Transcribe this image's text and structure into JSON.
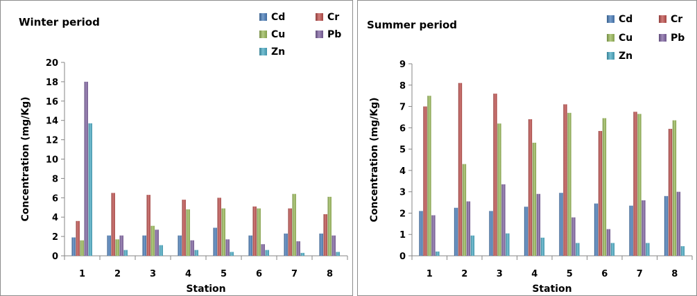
{
  "colors": {
    "Cd": "#4a7ebb",
    "Cr": "#c0504d",
    "Cu": "#9bbb59",
    "Pb": "#8064a2",
    "Zn": "#4bacc6"
  },
  "chart_data": [
    {
      "type": "bar",
      "title": "Winter period",
      "xlabel": "Station",
      "ylabel": "Concentration (mg/Kg)",
      "categories": [
        "1",
        "2",
        "3",
        "4",
        "5",
        "6",
        "7",
        "8"
      ],
      "ylim": [
        0,
        20
      ],
      "yticks": [
        "0",
        "2",
        "4",
        "6",
        "8",
        "10",
        "12",
        "14",
        "16",
        "18",
        "20"
      ],
      "legend_position": "top-right",
      "series": [
        {
          "name": "Cd",
          "values": [
            1.9,
            2.1,
            2.1,
            2.1,
            2.9,
            2.1,
            2.3,
            2.3
          ]
        },
        {
          "name": "Cr",
          "values": [
            3.6,
            6.5,
            6.3,
            5.8,
            6.0,
            5.1,
            4.9,
            4.3
          ]
        },
        {
          "name": "Cu",
          "values": [
            1.6,
            1.7,
            3.1,
            4.8,
            4.9,
            4.9,
            6.4,
            6.1
          ]
        },
        {
          "name": "Pb",
          "values": [
            18.0,
            2.1,
            2.7,
            1.6,
            1.7,
            1.2,
            1.5,
            2.1
          ]
        },
        {
          "name": "Zn",
          "values": [
            13.7,
            0.6,
            1.1,
            0.6,
            0.4,
            0.6,
            0.3,
            0.4
          ]
        }
      ]
    },
    {
      "type": "bar",
      "title": "Summer period",
      "xlabel": "Station",
      "ylabel": "Concentration (mg/Kg)",
      "categories": [
        "1",
        "2",
        "3",
        "4",
        "5",
        "6",
        "7",
        "8"
      ],
      "ylim": [
        0,
        9
      ],
      "yticks": [
        "0",
        "1",
        "2",
        "3",
        "4",
        "5",
        "6",
        "7",
        "8",
        "9"
      ],
      "legend_position": "top-right",
      "series": [
        {
          "name": "Cd",
          "values": [
            2.1,
            2.25,
            2.1,
            2.3,
            2.95,
            2.45,
            2.35,
            2.8
          ]
        },
        {
          "name": "Cr",
          "values": [
            7.0,
            8.1,
            7.6,
            6.4,
            7.1,
            5.85,
            6.75,
            5.95
          ]
        },
        {
          "name": "Cu",
          "values": [
            7.5,
            4.3,
            6.2,
            5.3,
            6.7,
            6.45,
            6.65,
            6.35
          ]
        },
        {
          "name": "Pb",
          "values": [
            1.9,
            2.55,
            3.35,
            2.9,
            1.8,
            1.25,
            2.6,
            3.0
          ]
        },
        {
          "name": "Zn",
          "values": [
            0.2,
            0.95,
            1.05,
            0.85,
            0.6,
            0.6,
            0.6,
            0.45
          ]
        }
      ]
    }
  ]
}
